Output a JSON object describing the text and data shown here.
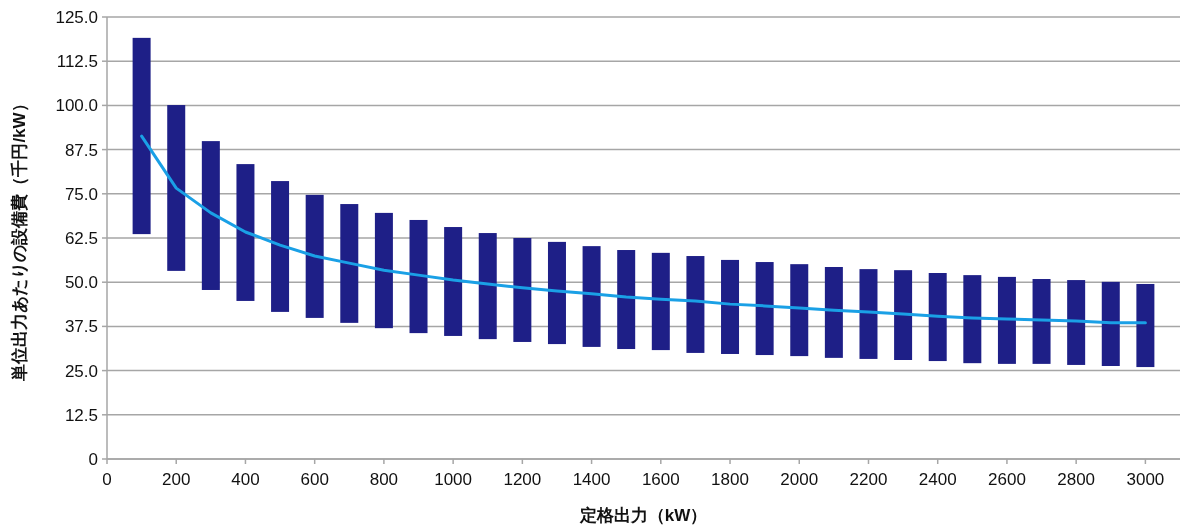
{
  "chart_data": {
    "type": "bar",
    "xlabel": "定格出力（kW）",
    "ylabel": "単位出力あたりの設備費（千円/kW）",
    "x": [
      100,
      200,
      300,
      400,
      500,
      600,
      700,
      800,
      900,
      1000,
      1100,
      1200,
      1300,
      1400,
      1500,
      1600,
      1700,
      1800,
      1900,
      2000,
      2100,
      2200,
      2300,
      2400,
      2500,
      2600,
      2700,
      2800,
      2900,
      3000
    ],
    "series": [
      {
        "color": "#1e1f87",
        "base": [
          63.6,
          53.2,
          47.8,
          44.7,
          41.6,
          39.9,
          38.5,
          37.0,
          35.6,
          34.8,
          33.9,
          33.1,
          32.5,
          31.7,
          31.1,
          30.8,
          30.0,
          29.7,
          29.4,
          29.1,
          28.6,
          28.3,
          28.0,
          27.7,
          27.1,
          26.9,
          26.9,
          26.6,
          26.3,
          26.0
        ],
        "values": [
          55.5,
          46.9,
          42.1,
          38.7,
          37.0,
          34.8,
          33.6,
          32.6,
          32.0,
          30.8,
          30.0,
          29.4,
          28.9,
          28.5,
          28.0,
          27.5,
          27.4,
          26.6,
          26.3,
          26.0,
          25.7,
          25.4,
          25.4,
          24.9,
          24.9,
          24.6,
          24.0,
          24.0,
          23.8,
          23.5
        ]
      },
      {
        "type": "line",
        "color": "#1aa0e6",
        "values": [
          91.3,
          76.6,
          69.6,
          64.2,
          60.5,
          57.4,
          55.4,
          53.4,
          52.0,
          50.6,
          49.5,
          48.4,
          47.5,
          46.7,
          45.8,
          45.2,
          44.7,
          43.8,
          43.3,
          42.7,
          42.1,
          41.6,
          41.0,
          40.4,
          39.9,
          39.6,
          39.3,
          39.0,
          38.5,
          38.5
        ]
      }
    ],
    "xlim": [
      0,
      3100
    ],
    "xticks": [
      0,
      200,
      400,
      600,
      800,
      1000,
      1200,
      1400,
      1600,
      1800,
      2000,
      2200,
      2400,
      2600,
      2800,
      3000
    ],
    "ylim": [
      0,
      125
    ],
    "yticks": [
      0,
      {
        "value": 12.5,
        "label": "12.5"
      },
      {
        "value": 25,
        "label": "25.0"
      },
      {
        "value": 37.5,
        "label": "37.5"
      },
      {
        "value": 50,
        "label": "50.0"
      },
      {
        "value": 62.5,
        "label": "62.5"
      },
      {
        "value": 75,
        "label": "75.0"
      },
      {
        "value": 87.5,
        "label": "87.5"
      },
      {
        "value": 100,
        "label": "100.0"
      },
      {
        "value": 112.5,
        "label": "112.5"
      },
      {
        "value": 125,
        "label": "125.0"
      }
    ],
    "grid": "y"
  }
}
